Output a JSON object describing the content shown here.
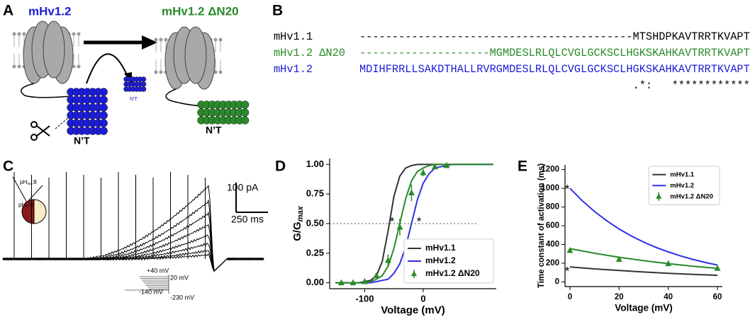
{
  "panel_labels": [
    "A",
    "B",
    "C",
    "D",
    "E"
  ],
  "panel_a": {
    "title_left": "mHv1.2",
    "title_right": "mHv1.2 ΔN20",
    "nterm_cut": "N’T",
    "nterm_small": "N’T",
    "nterm_right": "N’T"
  },
  "alignment": {
    "rows": [
      {
        "name": "mHv1.1",
        "sequence": "------------------------------------------MTSHDPKAVTRRTKVAPT",
        "color": "#000000"
      },
      {
        "name": "mHv1.2 ΔN20",
        "sequence": "--------------------MGMDESLRLQLCVGLGCKSCLHGKSKAHKAVTRRTKVAPT",
        "color": "#2a8a2a"
      },
      {
        "name": "mHv1.2",
        "sequence": "MDIHFRRLLSAKDTHALLRVRGMDESLRLQLCVGLGCKSCLHGKSKAHKAVTRRTKVAPT",
        "color": "#1c1cd6"
      }
    ],
    "conservation": ".*:   ************"
  },
  "panel_c": {
    "scale_current": "100 pA",
    "scale_time": "250 ms",
    "ph_out": {
      "text": "pH",
      "sub": "out",
      "suffix": ":8"
    },
    "ph_in": {
      "text": "pH",
      "sub": "in",
      "suffix": ":6"
    },
    "protocol": [
      "+40 mV",
      "20 mV",
      "-140 mV",
      "-230 mV"
    ]
  },
  "chart_data": [
    {
      "type": "line",
      "xlabel": "Voltage (mV)",
      "ylabel": {
        "main": "G/G",
        "sub": "max"
      },
      "xlim": [
        -160,
        125
      ],
      "ylim": [
        -0.05,
        1.05
      ],
      "xticks": [
        -100,
        0
      ],
      "yticks": [
        {
          "value": 0,
          "label": "0.00"
        },
        {
          "value": 0.25,
          "label": "0.25"
        },
        {
          "value": 0.5,
          "label": "0.50"
        },
        {
          "value": 0.75,
          "label": "0.75"
        },
        {
          "value": 1,
          "label": "1.00"
        }
      ],
      "reference_line": 0.5,
      "annotations": [
        "*",
        "*"
      ],
      "legend": "lower right",
      "series": [
        {
          "name": "mHv1.1",
          "color": "#333333",
          "x": [
            -150,
            -140,
            -130,
            -120,
            -110,
            -100,
            -90,
            -80,
            -70,
            -60,
            -50,
            -40,
            -30,
            -20,
            -10,
            0,
            10,
            20,
            30,
            40,
            50,
            60,
            70,
            80,
            90,
            100,
            110,
            120
          ],
          "values": [
            0,
            0,
            0,
            0,
            0,
            0.01,
            0.02,
            0.06,
            0.18,
            0.44,
            0.73,
            0.9,
            0.97,
            0.99,
            1,
            1,
            1,
            1,
            1,
            1,
            1,
            1,
            1,
            1,
            1,
            1,
            1,
            1
          ]
        },
        {
          "name": "mHv1.2",
          "color": "#3030e8",
          "x": [
            -150,
            -140,
            -130,
            -120,
            -110,
            -100,
            -90,
            -80,
            -70,
            -60,
            -50,
            -40,
            -30,
            -20,
            -10,
            0,
            10,
            20,
            30,
            40,
            50,
            60,
            70,
            80,
            90,
            100,
            110,
            120
          ],
          "values": [
            0,
            0,
            0,
            0,
            0,
            0,
            0,
            0.01,
            0.02,
            0.03,
            0.08,
            0.16,
            0.3,
            0.5,
            0.7,
            0.84,
            0.92,
            0.97,
            0.98,
            0.99,
            1,
            1,
            1,
            1,
            1,
            1,
            1,
            1
          ]
        },
        {
          "color": "#2a8a2a",
          "x": [
            -150,
            -140,
            -130,
            -120,
            -110,
            -100,
            -90,
            -80,
            -70,
            -60,
            -50,
            -40,
            -30,
            -20,
            -10,
            0,
            10,
            20,
            30,
            40,
            50,
            60,
            70,
            80,
            90,
            100,
            110,
            120
          ],
          "values": [
            0,
            0,
            0,
            0,
            0,
            0,
            0.01,
            0.03,
            0.06,
            0.14,
            0.29,
            0.5,
            0.71,
            0.86,
            0.94,
            0.97,
            0.99,
            1,
            1,
            1,
            1,
            1,
            1,
            1,
            1,
            1,
            1,
            1
          ]
        },
        {
          "name": "mHv1.2 ΔN20",
          "color": "#2a8a2a",
          "mode": "markers",
          "x": [
            -140,
            -120,
            -100,
            -80,
            -60,
            -40,
            -20,
            0,
            20,
            40
          ],
          "values": [
            0,
            0,
            0.01,
            0.06,
            0.19,
            0.47,
            0.76,
            0.93,
            0.98,
            0.99
          ],
          "errors": [
            0.01,
            0.01,
            0.01,
            0.02,
            0.05,
            0.07,
            0.07,
            0.03,
            0.01,
            0.01
          ]
        }
      ]
    },
    {
      "type": "line",
      "xlabel": "Voltage (mV)",
      "ylabel": "Time constant of activation (ms)",
      "xlim": [
        -2,
        62
      ],
      "ylim": [
        -50,
        1250
      ],
      "xticks": [
        0,
        20,
        40,
        60
      ],
      "yticks": [
        0,
        200,
        400,
        600,
        800,
        1000,
        1200
      ],
      "annotations": [
        "*",
        "*"
      ],
      "legend": "upper right",
      "series": [
        {
          "name": "mHv1.1",
          "color": "#333333",
          "x": [
            0,
            10,
            20,
            30,
            40,
            50,
            60
          ],
          "values": [
            160,
            139,
            122,
            106,
            92,
            80,
            70
          ]
        },
        {
          "name": "mHv1.2",
          "color": "#3030e8",
          "x": [
            0,
            5,
            10,
            15,
            20,
            25,
            30,
            35,
            40,
            45,
            50,
            55,
            60
          ],
          "values": [
            1000,
            867,
            752,
            652,
            565,
            490,
            425,
            368,
            320,
            277,
            240,
            208,
            180
          ]
        },
        {
          "color": "#2a8a2a",
          "x": [
            0,
            10,
            20,
            30,
            40,
            50,
            60
          ],
          "values": [
            355,
            306,
            263,
            227,
            195,
            168,
            145
          ]
        },
        {
          "name": "mHv1.2 ΔN20",
          "color": "#2a8a2a",
          "mode": "markers",
          "x": [
            0,
            20,
            40,
            60
          ],
          "values": [
            335,
            240,
            195,
            145
          ],
          "errors": [
            25,
            15,
            25,
            15
          ]
        }
      ]
    }
  ]
}
